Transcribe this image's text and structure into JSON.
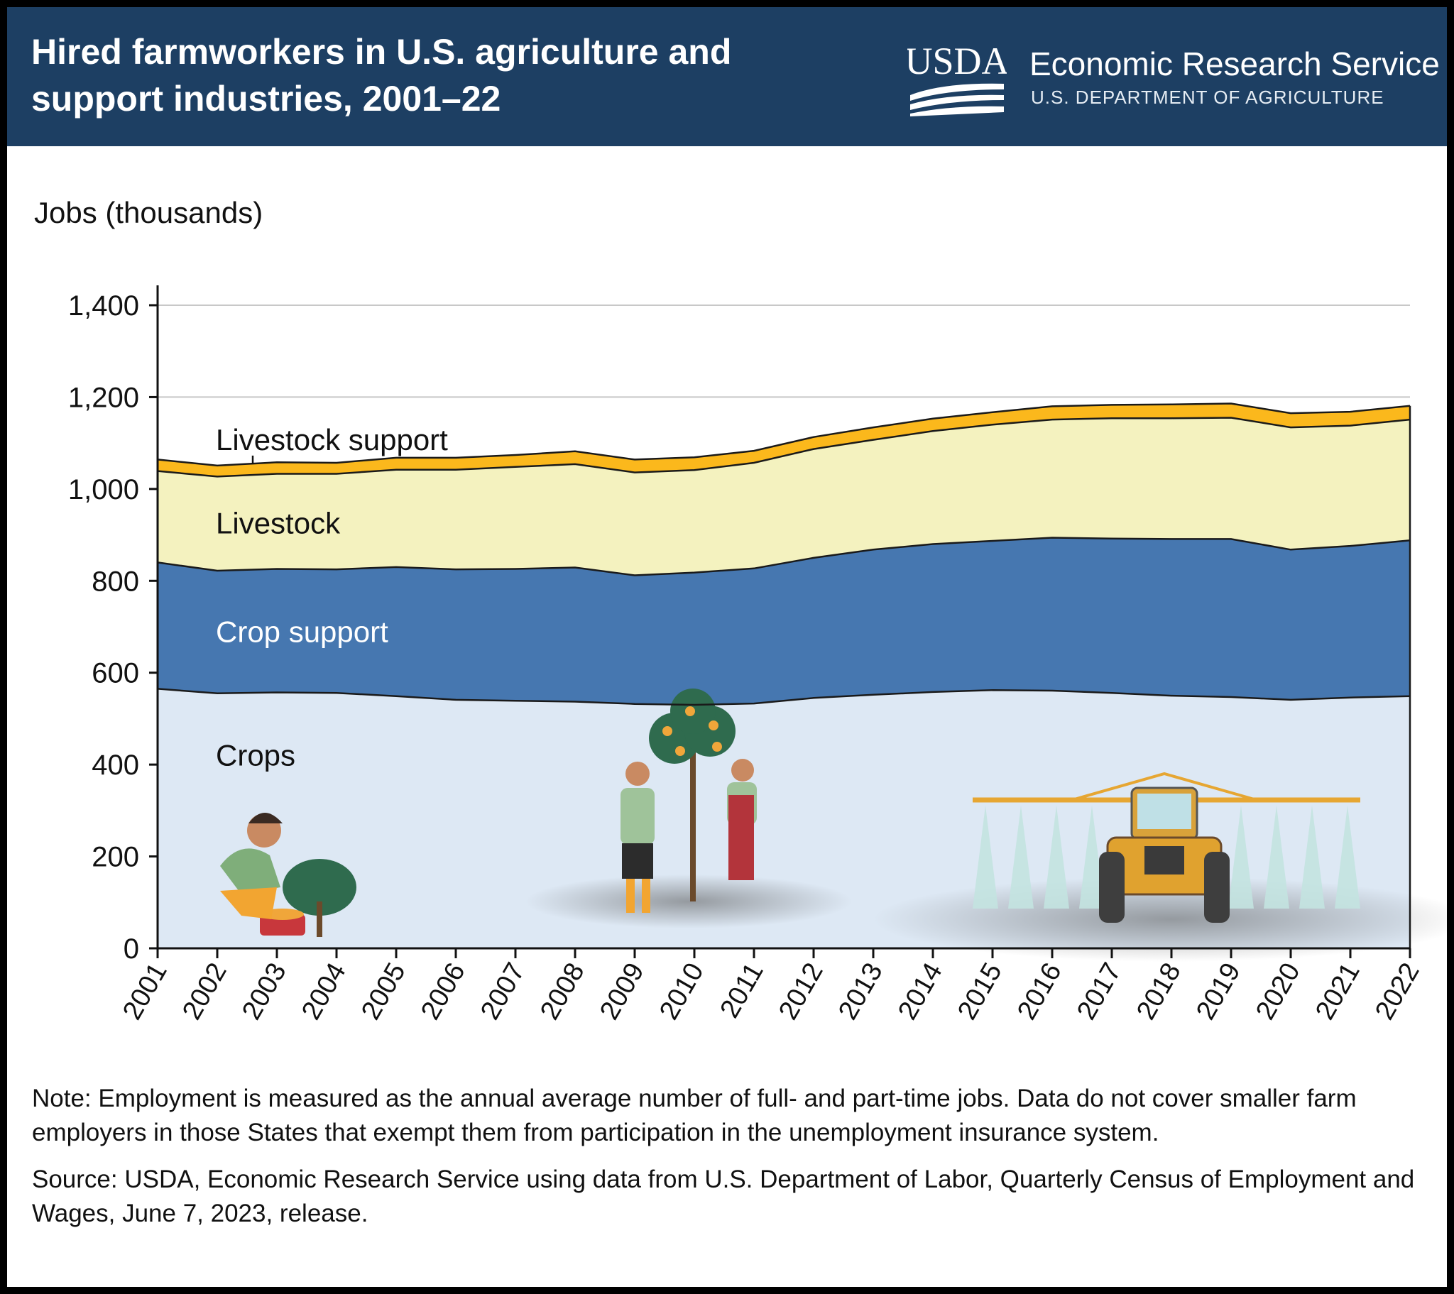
{
  "header": {
    "title": "Hired farmworkers in U.S. agriculture and support industries, 2001–22",
    "logo_text": "USDA",
    "agency": "Economic Research Service",
    "department": "U.S. DEPARTMENT OF AGRICULTURE",
    "background_color": "#1d3f63"
  },
  "chart_data": {
    "type": "area",
    "stacked": true,
    "title": "Hired farmworkers in U.S. agriculture and support industries, 2001–22",
    "ylabel": "Jobs (thousands)",
    "xlabel": "",
    "ylim": [
      0,
      1400
    ],
    "yticks": [
      0,
      200,
      400,
      600,
      800,
      1000,
      1200,
      1400
    ],
    "ytick_labels": [
      "0",
      "200",
      "400",
      "600",
      "800",
      "1,000",
      "1,200",
      "1,400"
    ],
    "grid": "horizontal",
    "x": [
      "2001",
      "2002",
      "2003",
      "2004",
      "2005",
      "2006",
      "2007",
      "2008",
      "2009",
      "2010",
      "2011",
      "2012",
      "2013",
      "2014",
      "2015",
      "2016",
      "2017",
      "2018",
      "2019",
      "2020",
      "2021",
      "2022"
    ],
    "series": [
      {
        "name": "Crops",
        "color": "#dde8f4",
        "label_color": "#111111",
        "values": [
          565,
          555,
          557,
          556,
          549,
          541,
          539,
          537,
          532,
          530,
          533,
          545,
          552,
          558,
          562,
          561,
          556,
          550,
          547,
          541,
          546,
          549
        ]
      },
      {
        "name": "Crop support",
        "color": "#4677b0",
        "label_color": "#ffffff",
        "values": [
          275,
          267,
          269,
          269,
          281,
          284,
          287,
          292,
          280,
          288,
          294,
          305,
          316,
          322,
          325,
          333,
          336,
          341,
          344,
          327,
          330,
          339
        ]
      },
      {
        "name": "Livestock",
        "color": "#f4f2bf",
        "label_color": "#111111",
        "values": [
          199,
          205,
          207,
          208,
          212,
          217,
          222,
          225,
          224,
          223,
          230,
          237,
          239,
          246,
          253,
          257,
          262,
          263,
          264,
          266,
          262,
          263
        ]
      },
      {
        "name": "Livestock support",
        "color": "#fbb81c",
        "label_color": "#111111",
        "values": [
          25,
          24,
          25,
          24,
          26,
          26,
          26,
          28,
          28,
          28,
          26,
          26,
          27,
          27,
          27,
          29,
          29,
          30,
          31,
          31,
          30,
          30
        ]
      }
    ]
  },
  "notes": {
    "note": "Note: Employment is measured as the annual average number of full- and part-time jobs. Data do not cover smaller farm employers in those States that exempt them from participation in the unemployment insurance system.",
    "source": "Source: USDA, Economic Research Service using data from U.S. Department of Labor, Quarterly Census of Employment and Wages, June 7, 2023, release."
  }
}
